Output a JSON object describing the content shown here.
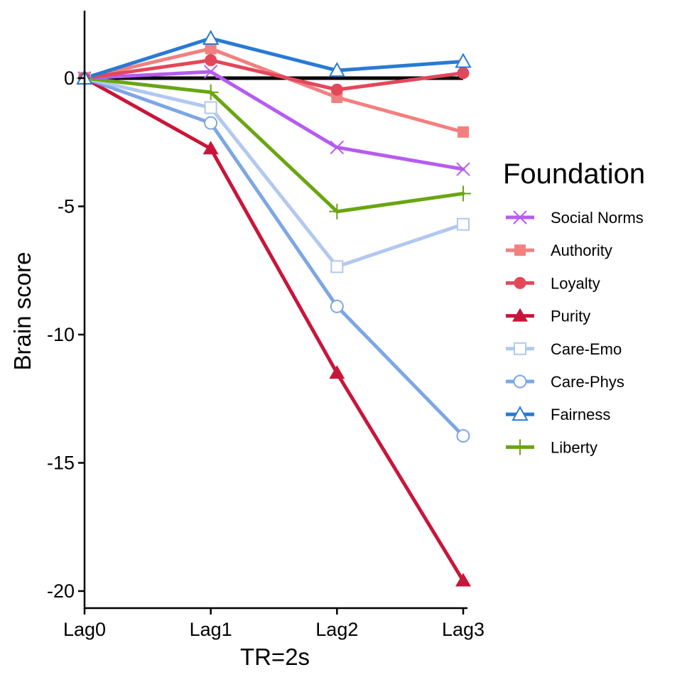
{
  "chart_data": {
    "type": "line",
    "xlabel": "TR=2s",
    "ylabel": "Brain score",
    "categories": [
      "Lag0",
      "Lag1",
      "Lag2",
      "Lag3"
    ],
    "ylim": [
      -20.6,
      2.6
    ],
    "yticks": [
      0,
      -5,
      -10,
      -15,
      -20
    ],
    "ytick_labels": [
      "0",
      "-5",
      "-10",
      "-15",
      "-20"
    ],
    "grid": false,
    "reference_line": 0,
    "legend": {
      "title": "Foundation",
      "position": "right"
    },
    "series": [
      {
        "name": "Fairness",
        "values": [
          0,
          1.55,
          0.3,
          0.65
        ],
        "color": "#2a7ad3",
        "marker": "triangle-open"
      },
      {
        "name": "Authority",
        "values": [
          0,
          1.15,
          -0.75,
          -2.1
        ],
        "color": "#f28080",
        "marker": "square-filled"
      },
      {
        "name": "Loyalty",
        "values": [
          0,
          0.7,
          -0.45,
          0.2
        ],
        "color": "#e3475a",
        "marker": "circle-filled"
      },
      {
        "name": "Social Norms",
        "values": [
          0,
          0.25,
          -2.7,
          -3.55
        ],
        "color": "#b65cf0",
        "marker": "x"
      },
      {
        "name": "Liberty",
        "values": [
          0,
          -0.55,
          -5.2,
          -4.5
        ],
        "color": "#6aa512",
        "marker": "plus"
      },
      {
        "name": "Care-Emo",
        "values": [
          0,
          -1.15,
          -7.35,
          -5.7
        ],
        "color": "#b2c8f0",
        "marker": "square-open"
      },
      {
        "name": "Care-Phys",
        "values": [
          0,
          -1.75,
          -8.9,
          -13.95
        ],
        "color": "#7da7e3",
        "marker": "circle-open"
      },
      {
        "name": "Purity",
        "values": [
          0,
          -2.75,
          -11.5,
          -19.6
        ],
        "color": "#c8163a",
        "marker": "triangle-filled"
      }
    ],
    "legend_order": [
      "Social Norms",
      "Authority",
      "Loyalty",
      "Purity",
      "Care-Emo",
      "Care-Phys",
      "Fairness",
      "Liberty"
    ]
  }
}
